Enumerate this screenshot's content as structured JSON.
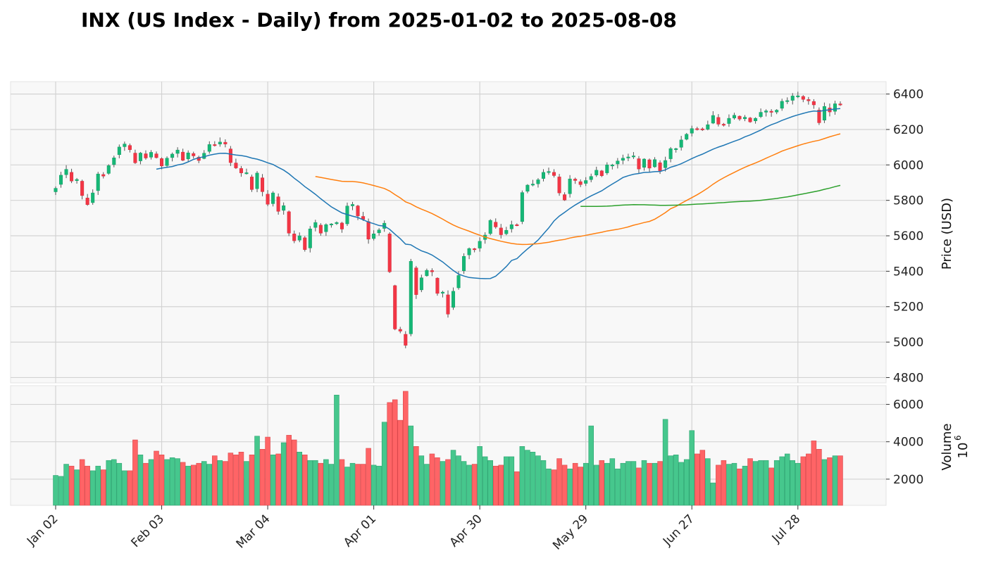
{
  "chart_data": {
    "type": "candlestick",
    "title": "INX (US Index - Daily) from 2025-01-02 to 2025-08-08",
    "price_ylabel": "Price (USD)",
    "volume_ylabel": "Volume",
    "volume_multiplier": "10",
    "volume_exponent": "6",
    "price_ylim": [
      4770,
      6470
    ],
    "price_yticks": [
      "4800",
      "5000",
      "5200",
      "5400",
      "5600",
      "5800",
      "6000",
      "6200",
      "6400"
    ],
    "volume_ylim": [
      600,
      7000
    ],
    "volume_yticks": [
      "2000",
      "4000",
      "6000"
    ],
    "x_tick_labels": [
      {
        "index": 0,
        "label": "Jan 02"
      },
      {
        "index": 20,
        "label": "Feb 03"
      },
      {
        "index": 40,
        "label": "Mar 04"
      },
      {
        "index": 60,
        "label": "Apr 01"
      },
      {
        "index": 80,
        "label": "Apr 30"
      },
      {
        "index": 100,
        "label": "May 29"
      },
      {
        "index": 120,
        "label": "Jun 27"
      },
      {
        "index": 140,
        "label": "Jul 28"
      }
    ],
    "n_days": 149,
    "colors": {
      "up": "#26a69a",
      "up_fill": "#16b776",
      "down": "#ef5350",
      "down_fill": "#f23645",
      "vol_up": "#46c78d",
      "vol_down": "#ff6466",
      "ma_short": "#1f77b4",
      "ma_mid": "#ff7f0e",
      "ma_long": "#2ca02c",
      "panel_bg": "#f8f8f8",
      "grid": "#d3d3d3"
    },
    "close_keypoints": [
      [
        0,
        5868
      ],
      [
        1,
        5942
      ],
      [
        2,
        5975
      ],
      [
        3,
        5909
      ],
      [
        4,
        5918
      ],
      [
        5,
        5827
      ],
      [
        6,
        5776
      ],
      [
        7,
        5842
      ],
      [
        8,
        5949
      ],
      [
        9,
        5937
      ],
      [
        10,
        5996
      ],
      [
        11,
        6040
      ],
      [
        12,
        6101
      ],
      [
        13,
        6118
      ],
      [
        14,
        6086
      ],
      [
        15,
        6012
      ],
      [
        16,
        6067
      ],
      [
        17,
        6039
      ],
      [
        18,
        6071
      ],
      [
        19,
        6041
      ],
      [
        20,
        5994
      ],
      [
        21,
        6038
      ],
      [
        22,
        6061
      ],
      [
        23,
        6084
      ],
      [
        24,
        6026
      ],
      [
        25,
        6068
      ],
      [
        26,
        6051
      ],
      [
        27,
        6025
      ],
      [
        28,
        6066
      ],
      [
        29,
        6115
      ],
      [
        30,
        6114
      ],
      [
        31,
        6129
      ],
      [
        32,
        6118
      ],
      [
        33,
        6013
      ],
      [
        34,
        5983
      ],
      [
        35,
        5955
      ],
      [
        36,
        5956
      ],
      [
        37,
        5861
      ],
      [
        38,
        5954
      ],
      [
        39,
        5849
      ],
      [
        40,
        5778
      ],
      [
        41,
        5842
      ],
      [
        42,
        5738
      ],
      [
        43,
        5770
      ],
      [
        44,
        5615
      ],
      [
        45,
        5572
      ],
      [
        46,
        5600
      ],
      [
        47,
        5522
      ],
      [
        48,
        5639
      ],
      [
        49,
        5675
      ],
      [
        50,
        5615
      ],
      [
        51,
        5663
      ],
      [
        52,
        5667
      ],
      [
        53,
        5675
      ],
      [
        54,
        5638
      ],
      [
        55,
        5768
      ],
      [
        56,
        5777
      ],
      [
        57,
        5712
      ],
      [
        58,
        5693
      ],
      [
        59,
        5581
      ],
      [
        60,
        5611
      ],
      [
        61,
        5633
      ],
      [
        62,
        5671
      ],
      [
        63,
        5397
      ],
      [
        64,
        5074
      ],
      [
        65,
        5062
      ],
      [
        66,
        4982
      ],
      [
        67,
        5456
      ],
      [
        68,
        5268
      ],
      [
        69,
        5363
      ],
      [
        70,
        5405
      ],
      [
        71,
        5397
      ],
      [
        72,
        5275
      ],
      [
        73,
        5282
      ],
      [
        74,
        5158
      ],
      [
        75,
        5287
      ],
      [
        76,
        5376
      ],
      [
        77,
        5484
      ],
      [
        78,
        5528
      ],
      [
        79,
        5525
      ],
      [
        80,
        5569
      ],
      [
        81,
        5604
      ],
      [
        82,
        5687
      ],
      [
        83,
        5650
      ],
      [
        84,
        5606
      ],
      [
        85,
        5631
      ],
      [
        86,
        5663
      ],
      [
        87,
        5660
      ],
      [
        88,
        5844
      ],
      [
        89,
        5886
      ],
      [
        90,
        5892
      ],
      [
        91,
        5916
      ],
      [
        92,
        5958
      ],
      [
        93,
        5963
      ],
      [
        94,
        5940
      ],
      [
        95,
        5842
      ],
      [
        96,
        5802
      ],
      [
        97,
        5921
      ],
      [
        98,
        5912
      ],
      [
        99,
        5889
      ],
      [
        100,
        5912
      ],
      [
        101,
        5935
      ],
      [
        102,
        5970
      ],
      [
        103,
        5939
      ],
      [
        104,
        6000
      ],
      [
        105,
        6000
      ],
      [
        106,
        6022
      ],
      [
        107,
        6038
      ],
      [
        108,
        6045
      ],
      [
        109,
        6051
      ],
      [
        110,
        5977
      ],
      [
        111,
        6033
      ],
      [
        112,
        5982
      ],
      [
        113,
        6030
      ],
      [
        114,
        5967
      ],
      [
        115,
        6025
      ],
      [
        116,
        6092
      ],
      [
        117,
        6092
      ],
      [
        118,
        6141
      ],
      [
        119,
        6173
      ],
      [
        120,
        6205
      ],
      [
        121,
        6204
      ],
      [
        122,
        6198
      ],
      [
        123,
        6227
      ],
      [
        124,
        6279
      ],
      [
        125,
        6230
      ],
      [
        126,
        6225
      ],
      [
        127,
        6263
      ],
      [
        128,
        6280
      ],
      [
        129,
        6259
      ],
      [
        130,
        6269
      ],
      [
        131,
        6243
      ],
      [
        132,
        6263
      ],
      [
        133,
        6297
      ],
      [
        134,
        6305
      ],
      [
        135,
        6297
      ],
      [
        136,
        6309
      ],
      [
        137,
        6359
      ],
      [
        138,
        6363
      ],
      [
        139,
        6389
      ],
      [
        140,
        6390
      ],
      [
        141,
        6370
      ],
      [
        142,
        6362
      ],
      [
        143,
        6339
      ],
      [
        144,
        6238
      ],
      [
        145,
        6330
      ],
      [
        146,
        6299
      ],
      [
        147,
        6345
      ],
      [
        148,
        6340
      ]
    ],
    "volume_keypoints": [
      [
        0,
        2200
      ],
      [
        1,
        2150
      ],
      [
        2,
        2800
      ],
      [
        3,
        2700
      ],
      [
        4,
        2500
      ],
      [
        5,
        3050
      ],
      [
        6,
        2700
      ],
      [
        7,
        2450
      ],
      [
        8,
        2700
      ],
      [
        9,
        2500
      ],
      [
        10,
        3000
      ],
      [
        11,
        3050
      ],
      [
        12,
        2850
      ],
      [
        13,
        2450
      ],
      [
        14,
        2450
      ],
      [
        15,
        4100
      ],
      [
        16,
        3300
      ],
      [
        17,
        2850
      ],
      [
        18,
        3050
      ],
      [
        19,
        3500
      ],
      [
        20,
        3300
      ],
      [
        21,
        3050
      ],
      [
        22,
        3150
      ],
      [
        23,
        3100
      ],
      [
        24,
        2900
      ],
      [
        25,
        2700
      ],
      [
        26,
        2750
      ],
      [
        27,
        2850
      ],
      [
        28,
        2950
      ],
      [
        29,
        2800
      ],
      [
        30,
        3250
      ],
      [
        31,
        3000
      ],
      [
        32,
        2950
      ],
      [
        33,
        3400
      ],
      [
        34,
        3300
      ],
      [
        35,
        3450
      ],
      [
        36,
        2950
      ],
      [
        37,
        3300
      ],
      [
        38,
        4300
      ],
      [
        39,
        3600
      ],
      [
        40,
        4250
      ],
      [
        41,
        3300
      ],
      [
        42,
        3350
      ],
      [
        43,
        3950
      ],
      [
        44,
        4350
      ],
      [
        45,
        4100
      ],
      [
        46,
        3450
      ],
      [
        47,
        3300
      ],
      [
        48,
        3000
      ],
      [
        49,
        3000
      ],
      [
        50,
        2850
      ],
      [
        51,
        3050
      ],
      [
        52,
        2800
      ],
      [
        53,
        6500
      ],
      [
        54,
        3050
      ],
      [
        55,
        2650
      ],
      [
        56,
        2850
      ],
      [
        57,
        2800
      ],
      [
        58,
        2800
      ],
      [
        59,
        3650
      ],
      [
        60,
        2750
      ],
      [
        61,
        2700
      ],
      [
        62,
        5050
      ],
      [
        63,
        6100
      ],
      [
        64,
        6250
      ],
      [
        65,
        5150
      ],
      [
        66,
        6700
      ],
      [
        67,
        4850
      ],
      [
        68,
        3750
      ],
      [
        69,
        3250
      ],
      [
        70,
        2800
      ],
      [
        71,
        3350
      ],
      [
        72,
        3150
      ],
      [
        73,
        2950
      ],
      [
        74,
        3050
      ],
      [
        75,
        3550
      ],
      [
        76,
        3250
      ],
      [
        77,
        2950
      ],
      [
        78,
        2750
      ],
      [
        79,
        2800
      ],
      [
        80,
        3750
      ],
      [
        81,
        3200
      ],
      [
        82,
        3000
      ],
      [
        83,
        2700
      ],
      [
        84,
        2750
      ],
      [
        85,
        3200
      ],
      [
        86,
        3200
      ],
      [
        87,
        2400
      ],
      [
        88,
        3750
      ],
      [
        89,
        3550
      ],
      [
        90,
        3450
      ],
      [
        91,
        3250
      ],
      [
        92,
        3000
      ],
      [
        93,
        2550
      ],
      [
        94,
        2500
      ],
      [
        95,
        3100
      ],
      [
        96,
        2750
      ],
      [
        97,
        2550
      ],
      [
        98,
        2850
      ],
      [
        99,
        2650
      ],
      [
        100,
        2850
      ],
      [
        101,
        4850
      ],
      [
        102,
        2750
      ],
      [
        103,
        3000
      ],
      [
        104,
        2850
      ],
      [
        105,
        3100
      ],
      [
        106,
        2550
      ],
      [
        107,
        2850
      ],
      [
        108,
        2950
      ],
      [
        109,
        2950
      ],
      [
        110,
        2600
      ],
      [
        111,
        3000
      ],
      [
        112,
        2850
      ],
      [
        113,
        2850
      ],
      [
        114,
        2950
      ],
      [
        115,
        5200
      ],
      [
        116,
        3250
      ],
      [
        117,
        3300
      ],
      [
        118,
        2900
      ],
      [
        119,
        3050
      ],
      [
        120,
        4600
      ],
      [
        121,
        3350
      ],
      [
        122,
        3550
      ],
      [
        123,
        3100
      ],
      [
        124,
        1800
      ],
      [
        125,
        2750
      ],
      [
        126,
        3000
      ],
      [
        127,
        2800
      ],
      [
        128,
        2850
      ],
      [
        129,
        2550
      ],
      [
        130,
        2700
      ],
      [
        131,
        3100
      ],
      [
        132,
        2950
      ],
      [
        133,
        3000
      ],
      [
        134,
        3000
      ],
      [
        135,
        2600
      ],
      [
        136,
        3000
      ],
      [
        137,
        3200
      ],
      [
        138,
        3350
      ],
      [
        139,
        3000
      ],
      [
        140,
        2850
      ],
      [
        141,
        3200
      ],
      [
        142,
        3350
      ],
      [
        143,
        4050
      ],
      [
        144,
        3600
      ],
      [
        145,
        3050
      ],
      [
        146,
        3150
      ],
      [
        147,
        3250
      ],
      [
        148,
        3250
      ]
    ],
    "ma_short_window": 20,
    "ma_mid_window": 50,
    "ma_long_window": 100
  }
}
